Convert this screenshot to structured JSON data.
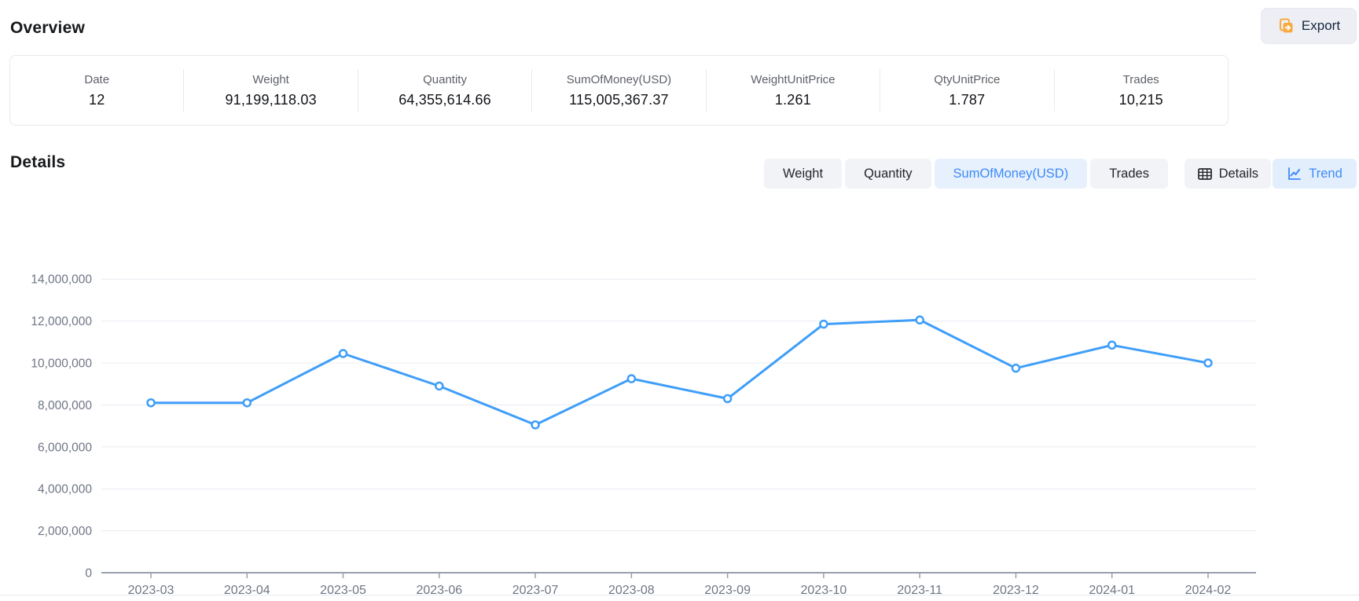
{
  "header": {
    "title": "Overview",
    "export_button": {
      "label": "Export",
      "icon": "export-copy-icon"
    }
  },
  "overview_card": {
    "stats": [
      {
        "label": "Date",
        "value": "12"
      },
      {
        "label": "Weight",
        "value": "91,199,118.03"
      },
      {
        "label": "Quantity",
        "value": "64,355,614.66"
      },
      {
        "label": "SumOfMoney(USD)",
        "value": "115,005,367.37"
      },
      {
        "label": "WeightUnitPrice",
        "value": "1.261"
      },
      {
        "label": "QtyUnitPrice",
        "value": "1.787"
      },
      {
        "label": "Trades",
        "value": "10,215"
      }
    ]
  },
  "details": {
    "title": "Details",
    "metric_tabs": [
      {
        "label": "Weight",
        "active": false
      },
      {
        "label": "Quantity",
        "active": false
      },
      {
        "label": "SumOfMoney(USD)",
        "active": true
      },
      {
        "label": "Trades",
        "active": false
      }
    ],
    "view_tabs": [
      {
        "label": "Details",
        "icon": "table-icon",
        "active": false
      },
      {
        "label": "Trend",
        "icon": "line-chart-icon",
        "active": true
      }
    ]
  },
  "colors": {
    "accent_blue": "#3d8af7",
    "line_blue": "#3f9ef8",
    "active_tab_bg": "#e7f1fd",
    "tab_bg": "#f2f3f7",
    "grid": "#e9ecf3",
    "axis": "#98a0ac",
    "label_gray": "#6f7585",
    "export_icon_orange": "#f9a93f"
  },
  "chart_data": {
    "type": "line",
    "title": "",
    "xlabel": "",
    "ylabel": "",
    "legend_position": "none",
    "grid": "horizontal",
    "marker": "open-circle",
    "x": [
      "2023-03",
      "2023-04",
      "2023-05",
      "2023-06",
      "2023-07",
      "2023-08",
      "2023-09",
      "2023-10",
      "2023-11",
      "2023-12",
      "2024-01",
      "2024-02"
    ],
    "series": [
      {
        "name": "SumOfMoney(USD)",
        "values": [
          8100000,
          8100000,
          10450000,
          8900000,
          7050000,
          9250000,
          8300000,
          11850000,
          12050000,
          9750000,
          10850000,
          10000000
        ]
      }
    ],
    "ylim": [
      0,
      14000000
    ],
    "ytick_step": 2000000,
    "ytick_labels": [
      "0",
      "2,000,000",
      "4,000,000",
      "6,000,000",
      "8,000,000",
      "10,000,000",
      "12,000,000",
      "14,000,000"
    ]
  }
}
